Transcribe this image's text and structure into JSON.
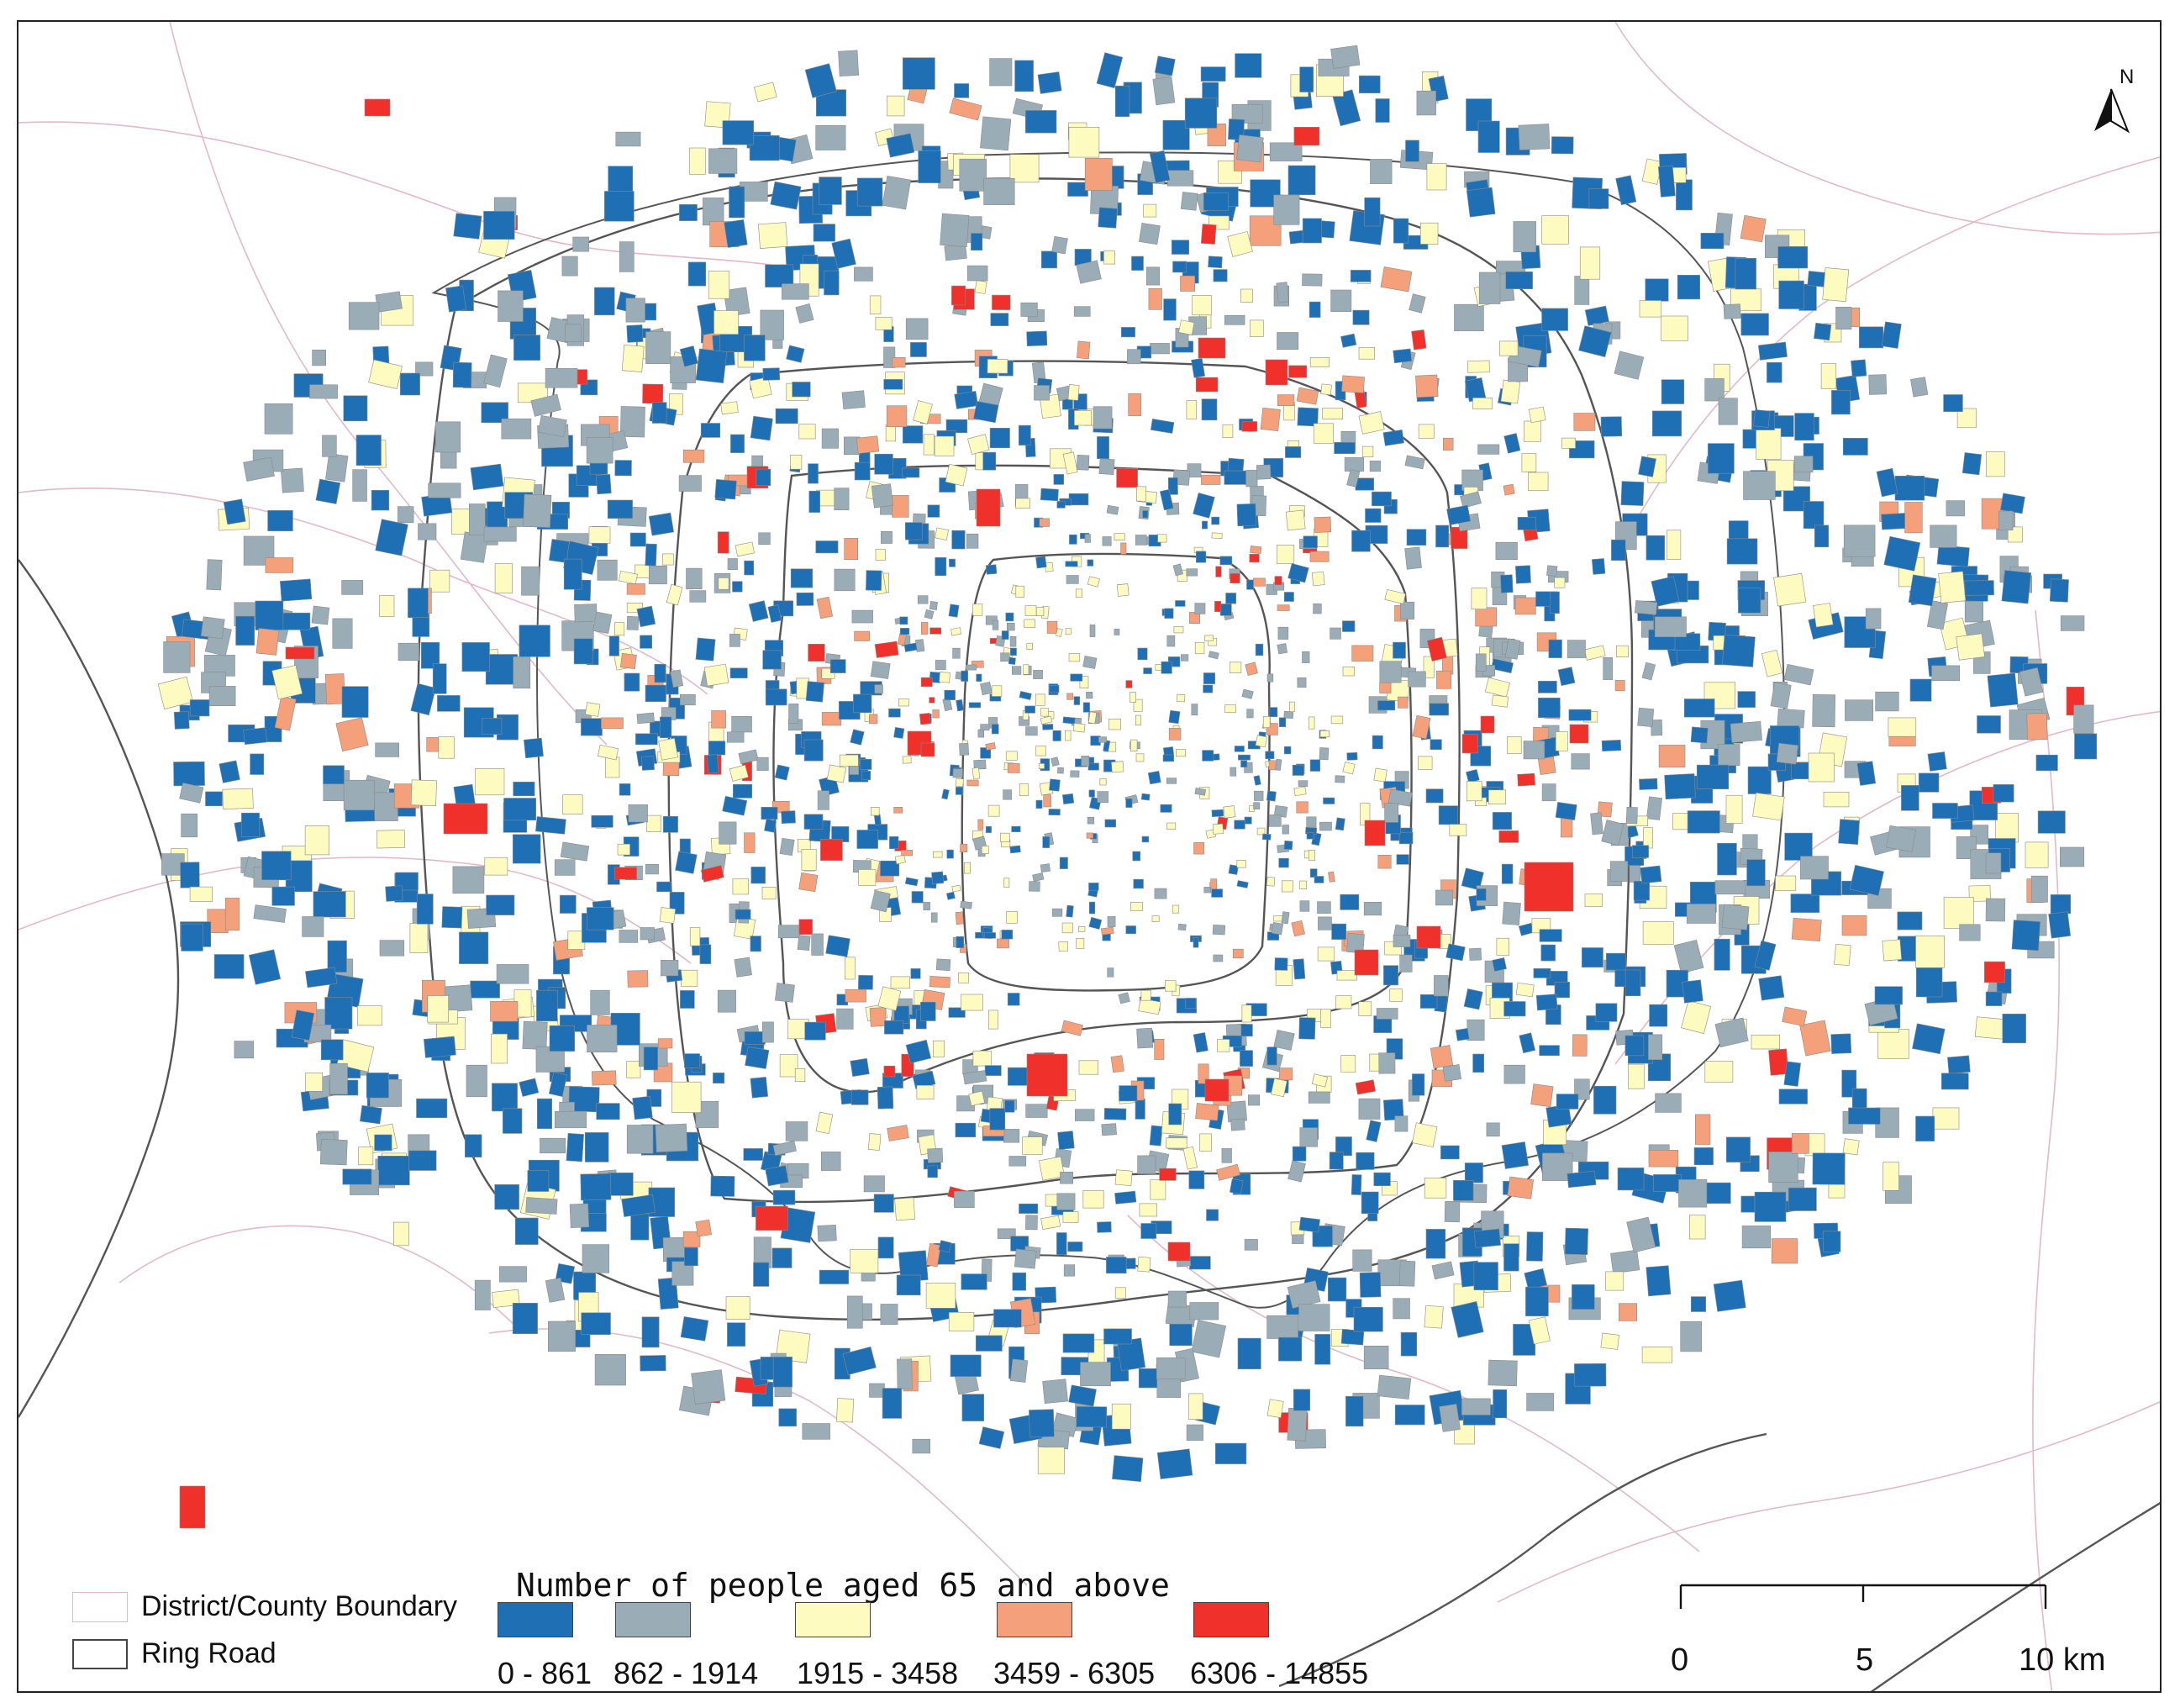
{
  "map": {
    "north_label": "N",
    "legend": {
      "title": "Number of people aged 65 and above",
      "classes": [
        {
          "label": "0 - 861",
          "color": "#1f6fb4"
        },
        {
          "label": "862 - 1914",
          "color": "#9aadb7"
        },
        {
          "label": "1915 - 3458",
          "color": "#fdfbc0"
        },
        {
          "label": "3459 - 6305",
          "color": "#f4a07a"
        },
        {
          "label": "6306 - 14855",
          "color": "#f0302a"
        }
      ]
    },
    "keys": {
      "district_boundary": "District/County Boundary",
      "ring_road": "Ring Road"
    },
    "scale_bar": {
      "ticks": [
        "0",
        "5",
        "10 km"
      ]
    },
    "colors": {
      "district_boundary": "#e8b8c8",
      "ring_road": "#555555",
      "frame": "#222222"
    }
  }
}
